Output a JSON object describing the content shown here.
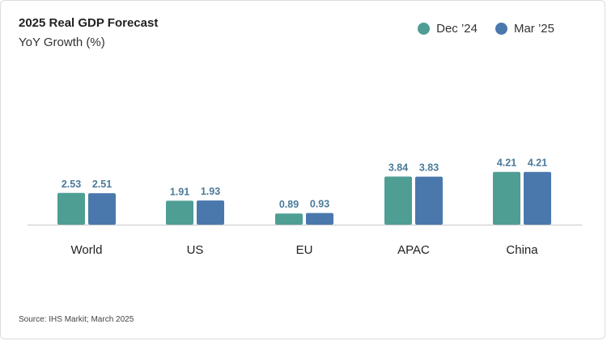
{
  "chart_data": {
    "type": "bar",
    "title": "2025 Real GDP Forecast",
    "subtitle": "YoY Growth (%)",
    "categories": [
      "World",
      "US",
      "EU",
      "APAC",
      "China"
    ],
    "series": [
      {
        "name": "Dec ’24",
        "color": "#4e9e94",
        "values": [
          2.53,
          1.91,
          0.89,
          3.84,
          4.21
        ]
      },
      {
        "name": "Mar ’25",
        "color": "#4a78ad",
        "values": [
          2.51,
          1.93,
          0.93,
          3.83,
          4.21
        ]
      }
    ],
    "ylim": [
      0,
      4.6
    ],
    "grid": false,
    "legend": "top-right",
    "value_label_color": "#4a7a99",
    "source": "Source: IHS Markit; March 2025"
  }
}
